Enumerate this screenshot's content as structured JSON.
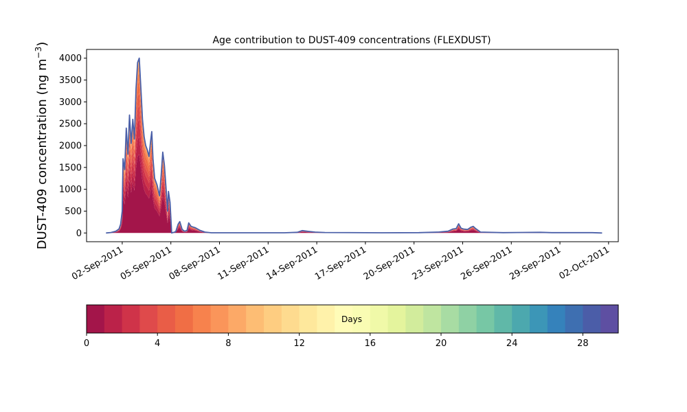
{
  "chart_data": {
    "type": "area",
    "title": "Age contribution to DUST-409 concentrations (FLEXDUST)",
    "ylabel_main": "DUST-409 concentration (ng m",
    "ylabel_sup": "−3",
    "ylabel_close": ")",
    "xlabel": "",
    "ylim": [
      -200,
      4200
    ],
    "yticks": [
      0,
      500,
      1000,
      1500,
      2000,
      2500,
      3000,
      3500,
      4000
    ],
    "xlim_day": [
      -1.2,
      31.6
    ],
    "xticks": [
      {
        "day": 1,
        "label": "02-Sep-2011"
      },
      {
        "day": 4,
        "label": "05-Sep-2011"
      },
      {
        "day": 7,
        "label": "08-Sep-2011"
      },
      {
        "day": 10,
        "label": "11-Sep-2011"
      },
      {
        "day": 13,
        "label": "14-Sep-2011"
      },
      {
        "day": 16,
        "label": "17-Sep-2011"
      },
      {
        "day": 19,
        "label": "20-Sep-2011"
      },
      {
        "day": 22,
        "label": "23-Sep-2011"
      },
      {
        "day": 25,
        "label": "26-Sep-2011"
      },
      {
        "day": 28,
        "label": "29-Sep-2011"
      },
      {
        "day": 31,
        "label": "02-Oct-2011"
      }
    ],
    "total_series": {
      "name": "total",
      "points": [
        [
          0.0,
          0
        ],
        [
          0.3,
          10
        ],
        [
          0.6,
          40
        ],
        [
          0.8,
          90
        ],
        [
          0.9,
          200
        ],
        [
          1.0,
          500
        ],
        [
          1.05,
          1700
        ],
        [
          1.15,
          1450
        ],
        [
          1.25,
          2400
        ],
        [
          1.35,
          1800
        ],
        [
          1.45,
          2700
        ],
        [
          1.55,
          2050
        ],
        [
          1.65,
          2600
        ],
        [
          1.75,
          2150
        ],
        [
          1.85,
          3300
        ],
        [
          1.95,
          3900
        ],
        [
          2.05,
          4000
        ],
        [
          2.15,
          3300
        ],
        [
          2.25,
          2600
        ],
        [
          2.35,
          2200
        ],
        [
          2.45,
          2000
        ],
        [
          2.55,
          1900
        ],
        [
          2.65,
          1750
        ],
        [
          2.75,
          2100
        ],
        [
          2.82,
          2320
        ],
        [
          2.9,
          1700
        ],
        [
          3.0,
          1250
        ],
        [
          3.15,
          1100
        ],
        [
          3.3,
          850
        ],
        [
          3.4,
          1300
        ],
        [
          3.5,
          1850
        ],
        [
          3.6,
          1550
        ],
        [
          3.7,
          1050
        ],
        [
          3.8,
          500
        ],
        [
          3.85,
          950
        ],
        [
          3.95,
          700
        ],
        [
          4.05,
          0
        ],
        [
          4.3,
          30
        ],
        [
          4.45,
          200
        ],
        [
          4.55,
          260
        ],
        [
          4.7,
          80
        ],
        [
          4.85,
          40
        ],
        [
          5.0,
          60
        ],
        [
          5.1,
          230
        ],
        [
          5.25,
          150
        ],
        [
          5.5,
          120
        ],
        [
          5.8,
          60
        ],
        [
          6.1,
          20
        ],
        [
          6.5,
          5
        ],
        [
          7.5,
          5
        ],
        [
          11.0,
          5
        ],
        [
          11.8,
          15
        ],
        [
          12.1,
          55
        ],
        [
          12.5,
          35
        ],
        [
          12.9,
          20
        ],
        [
          13.5,
          10
        ],
        [
          17.0,
          5
        ],
        [
          19.3,
          8
        ],
        [
          20.5,
          20
        ],
        [
          21.1,
          40
        ],
        [
          21.4,
          90
        ],
        [
          21.6,
          100
        ],
        [
          21.75,
          210
        ],
        [
          21.9,
          110
        ],
        [
          22.05,
          90
        ],
        [
          22.3,
          80
        ],
        [
          22.5,
          130
        ],
        [
          22.65,
          150
        ],
        [
          22.8,
          100
        ],
        [
          23.1,
          20
        ],
        [
          24.5,
          8
        ],
        [
          26.8,
          15
        ],
        [
          27.5,
          8
        ],
        [
          30.0,
          8
        ],
        [
          30.6,
          0
        ]
      ]
    },
    "age_fraction_bands": [
      [
        0,
        0.45
      ],
      [
        1,
        0.55
      ],
      [
        2,
        0.65
      ],
      [
        3,
        0.73
      ],
      [
        4,
        0.8
      ],
      [
        5,
        0.87
      ],
      [
        6,
        0.92
      ],
      [
        7,
        0.96
      ],
      [
        8,
        0.98
      ]
    ],
    "colorbar": {
      "label": "Days",
      "min": 0,
      "max": 30,
      "ticks": [
        0,
        4,
        8,
        12,
        16,
        20,
        24,
        28
      ],
      "colors": [
        "#a3154a",
        "#bb2249",
        "#cf3349",
        "#df4a4b",
        "#e95d47",
        "#f06e45",
        "#f7824d",
        "#fa955a",
        "#fca967",
        "#fdbd74",
        "#fecd81",
        "#fedb8f",
        "#fee89c",
        "#fff2aa",
        "#fffcb8",
        "#f9fcb3",
        "#f0f9a8",
        "#e4f49d",
        "#d2ec9c",
        "#bfe5a0",
        "#a8dca3",
        "#8fd1a4",
        "#77c7a5",
        "#60b8a8",
        "#4ca8ae",
        "#3c96b7",
        "#3582bb",
        "#3e6fb1",
        "#4b5da8",
        "#5e4fa2"
      ]
    },
    "outline_color": "#4a5fa8"
  }
}
